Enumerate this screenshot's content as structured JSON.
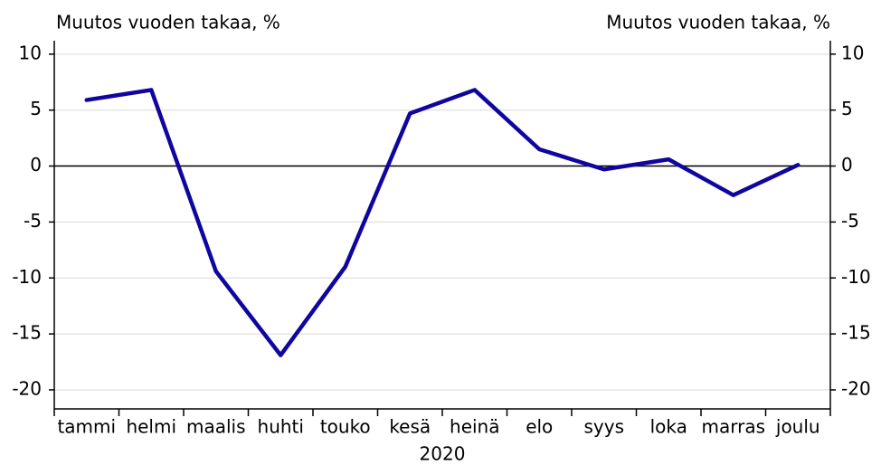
{
  "chart_data": {
    "type": "line",
    "ylabel": "Muutos vuoden takaa, %",
    "y2label": "Muutos vuoden takaa, %",
    "xlabel": "2020",
    "categories": [
      "tammi",
      "helmi",
      "maalis",
      "huhti",
      "touko",
      "kesä",
      "heinä",
      "elo",
      "syys",
      "loka",
      "marras",
      "joulu"
    ],
    "series": [
      {
        "name": null,
        "color": "#10069f",
        "values": [
          5.9,
          6.8,
          -9.4,
          -16.9,
          -9.0,
          4.7,
          6.8,
          1.5,
          -0.3,
          0.6,
          -2.6,
          0.1
        ]
      }
    ],
    "ylim": [
      -21.7,
      11.2
    ],
    "yticks": [
      10,
      5,
      0,
      -5,
      -10,
      -15,
      -20
    ],
    "y2lim": [
      -21.7,
      11.2
    ],
    "y2ticks": [
      10,
      5,
      0,
      -5,
      -10,
      -15,
      -20
    ],
    "grid": true
  }
}
